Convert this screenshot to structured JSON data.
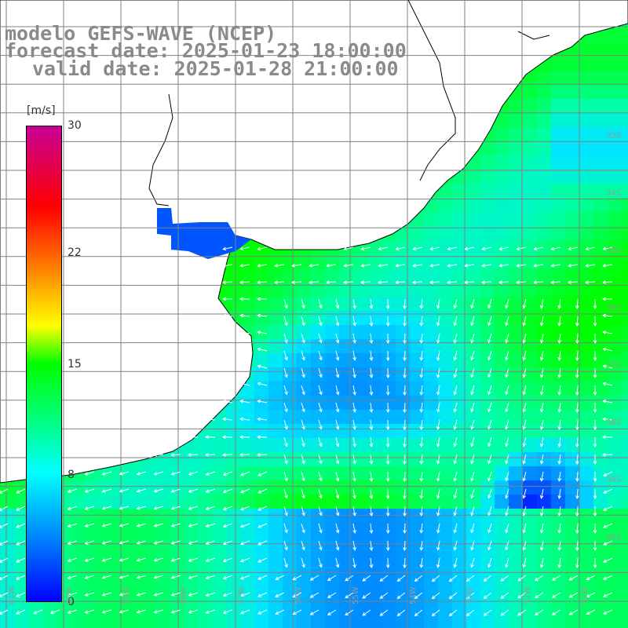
{
  "header": {
    "line1": "modelo GEFS-WAVE (NCEP)",
    "line2": "forecast date: 2025-01-23 18:00:00",
    "line3": "valid date: 2025-01-28 21:00:00"
  },
  "colorbar": {
    "unit": "[m/s]",
    "ticks": [
      {
        "label": "30",
        "value": 30
      },
      {
        "label": "22",
        "value": 22
      },
      {
        "label": "15",
        "value": 15
      },
      {
        "label": "8",
        "value": 8
      },
      {
        "label": "0",
        "value": 0
      }
    ],
    "colors": [
      "#0000ff",
      "#0080ff",
      "#00ffff",
      "#00ff80",
      "#00ff00",
      "#ffff00",
      "#ff8000",
      "#ff0000",
      "#c80096"
    ]
  },
  "map": {
    "land_color": "#ffffff",
    "grid_color": "#808080",
    "coast_color": "#000000",
    "arrow_color": "#ffffff",
    "lon_labels": [
      "61W",
      "60W",
      "59W",
      "58W",
      "57W",
      "56W",
      "55W",
      "54W",
      "53W",
      "52W",
      "51W"
    ],
    "lat_labels": [
      "33S",
      "34S",
      "35S",
      "36S",
      "37S",
      "38S",
      "39S",
      "40S"
    ]
  }
}
